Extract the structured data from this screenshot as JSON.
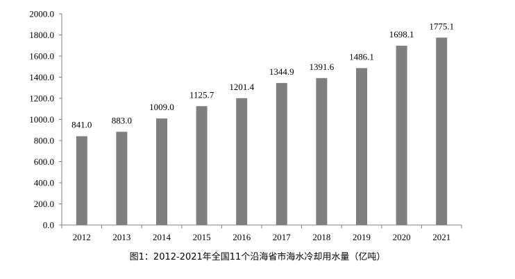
{
  "caption": "图1：2012-2021年全国11个沿海省市海水冷却用水量（亿吨）",
  "chart_data": {
    "type": "bar",
    "title": "",
    "xlabel": "",
    "ylabel": "",
    "categories": [
      "2012",
      "2013",
      "2014",
      "2015",
      "2016",
      "2017",
      "2018",
      "2019",
      "2020",
      "2021"
    ],
    "values": [
      841.0,
      883.0,
      1009.0,
      1125.7,
      1201.4,
      1344.9,
      1391.6,
      1486.1,
      1698.1,
      1775.1
    ],
    "value_labels": [
      "841.0",
      "883.0",
      "1009.0",
      "1125.7",
      "1201.4",
      "1344.9",
      "1391.6",
      "1486.1",
      "1698.1",
      "1775.1"
    ],
    "yticks": [
      "0.0",
      "200.0",
      "400.0",
      "600.0",
      "800.0",
      "1000.0",
      "1200.0",
      "1400.0",
      "1600.0",
      "1800.0",
      "2000.0"
    ],
    "ylim": [
      0,
      2000
    ],
    "grid": false,
    "legend": "none",
    "bar_color": "#7f7f7f"
  }
}
